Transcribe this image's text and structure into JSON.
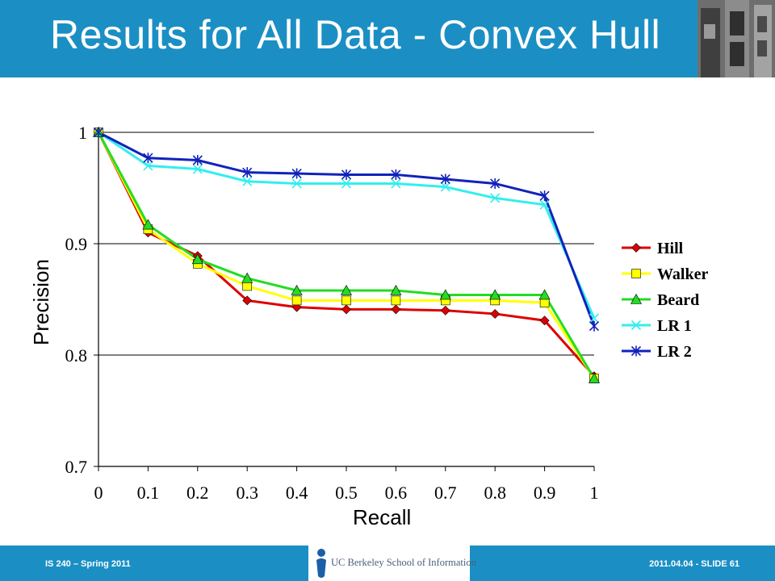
{
  "slide": {
    "title": "Results for All Data - Convex Hull",
    "footer_left": "IS 240 – Spring 2011",
    "footer_right": "2011.04.04 - SLIDE 61",
    "logo_text": "UC Berkeley School of Information"
  },
  "colors": {
    "header": "#1b8fc4",
    "footer": "#1b8fc4"
  },
  "chart_data": {
    "type": "line",
    "xlabel": "Recall",
    "ylabel": "Precision",
    "x": [
      0,
      0.1,
      0.2,
      0.3,
      0.4,
      0.5,
      0.6,
      0.7,
      0.8,
      0.9,
      1
    ],
    "x_tick_labels": [
      "0",
      "0.1",
      "0.2",
      "0.3",
      "0.4",
      "0.5",
      "0.6",
      "0.7",
      "0.8",
      "0.9",
      "1"
    ],
    "ylim": [
      0.7,
      1.0
    ],
    "y_ticks": [
      0.7,
      0.8,
      0.9,
      1.0
    ],
    "y_tick_labels": [
      "0.7",
      "0.8",
      "0.9",
      "1"
    ],
    "grid": "horizontal",
    "legend_position": "right",
    "series": [
      {
        "name": "Hill",
        "color": "#dd0000",
        "marker": "diamond",
        "values": [
          1.0,
          0.91,
          0.889,
          0.849,
          0.843,
          0.841,
          0.841,
          0.84,
          0.837,
          0.831,
          0.781
        ]
      },
      {
        "name": "Walker",
        "color": "#ffff00",
        "marker": "square",
        "values": [
          1.0,
          0.913,
          0.882,
          0.862,
          0.849,
          0.849,
          0.849,
          0.849,
          0.849,
          0.847,
          0.779
        ]
      },
      {
        "name": "Beard",
        "color": "#22dd22",
        "marker": "triangle",
        "values": [
          1.0,
          0.917,
          0.886,
          0.869,
          0.858,
          0.858,
          0.858,
          0.854,
          0.854,
          0.854,
          0.779
        ]
      },
      {
        "name": "LR 1",
        "color": "#33eeee",
        "marker": "x",
        "values": [
          1.0,
          0.97,
          0.967,
          0.956,
          0.954,
          0.954,
          0.954,
          0.951,
          0.941,
          0.935,
          0.833
        ]
      },
      {
        "name": "LR 2",
        "color": "#1122bb",
        "marker": "asterisk",
        "values": [
          1.0,
          0.977,
          0.975,
          0.964,
          0.963,
          0.962,
          0.962,
          0.958,
          0.954,
          0.943,
          0.826
        ]
      }
    ]
  }
}
